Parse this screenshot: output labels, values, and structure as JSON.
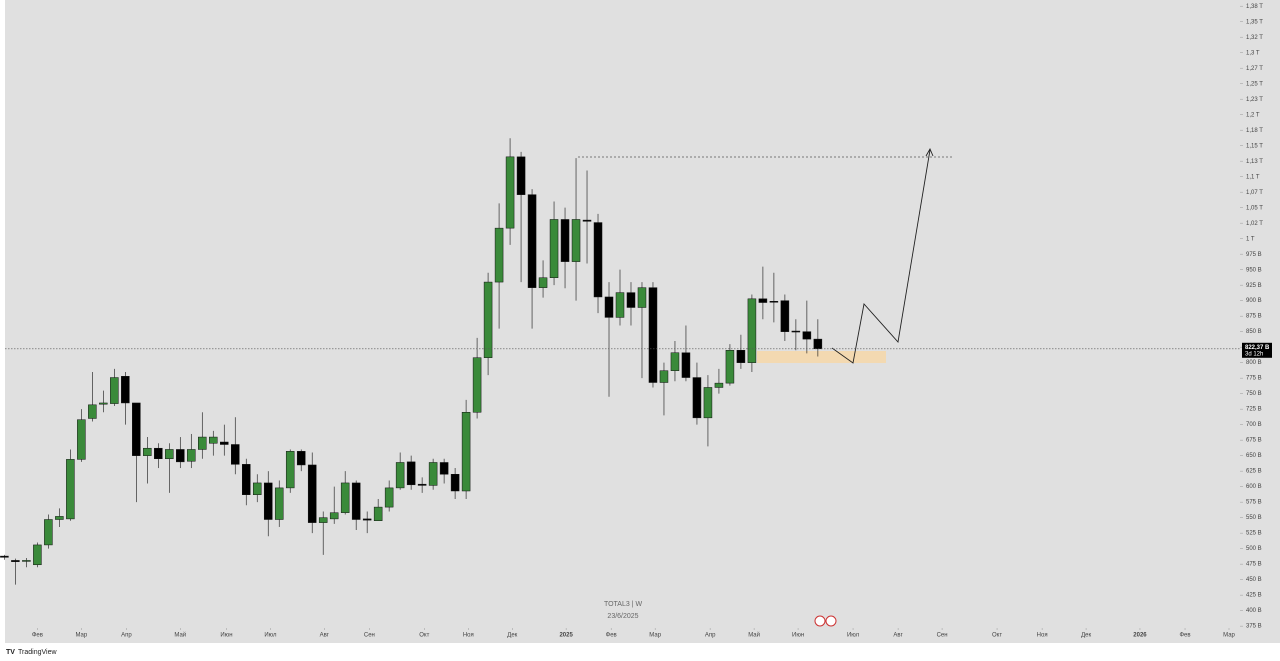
{
  "chart_data": {
    "type": "candlestick",
    "symbol": "TOTAL3 | W",
    "date": "23/6/2025",
    "brand": "TradingView",
    "open": [
      488,
      481,
      480,
      474,
      506,
      547,
      548,
      644,
      710,
      733,
      734,
      778,
      735,
      650,
      662,
      645,
      660,
      641,
      660,
      670,
      672,
      668,
      636,
      587,
      606,
      547,
      598,
      657,
      635,
      542,
      548,
      558,
      606,
      548,
      545,
      567,
      598,
      640,
      604,
      602,
      639,
      620,
      593,
      720,
      808,
      930,
      1017,
      1132,
      1071,
      921,
      937,
      1031,
      963,
      1030,
      1026,
      906,
      873,
      913,
      889,
      921,
      768,
      787,
      816,
      776,
      711,
      760,
      767,
      820,
      800,
      903,
      899,
      900,
      851,
      850,
      838
    ],
    "high": [
      490,
      484,
      485,
      510,
      555,
      565,
      660,
      725,
      785,
      755,
      790,
      785,
      735,
      680,
      670,
      670,
      680,
      685,
      720,
      690,
      700,
      712,
      645,
      620,
      625,
      610,
      660,
      660,
      655,
      560,
      600,
      625,
      610,
      560,
      580,
      610,
      655,
      650,
      615,
      645,
      645,
      630,
      740,
      840,
      945,
      1057,
      1162,
      1140,
      1080,
      965,
      1060,
      1050,
      1130,
      1110,
      1040,
      930,
      950,
      930,
      930,
      930,
      800,
      835,
      860,
      800,
      780,
      790,
      830,
      845,
      910,
      955,
      945,
      910,
      870,
      900,
      870
    ],
    "low": [
      482,
      442,
      470,
      470,
      500,
      535,
      545,
      640,
      705,
      720,
      730,
      700,
      575,
      605,
      630,
      590,
      630,
      630,
      645,
      650,
      650,
      620,
      570,
      575,
      520,
      535,
      590,
      625,
      525,
      490,
      540,
      555,
      530,
      525,
      545,
      560,
      595,
      595,
      590,
      595,
      605,
      580,
      580,
      710,
      780,
      855,
      990,
      930,
      855,
      905,
      925,
      920,
      900,
      960,
      880,
      745,
      860,
      860,
      775,
      760,
      715,
      770,
      770,
      700,
      665,
      750,
      763,
      790,
      785,
      870,
      865,
      835,
      820,
      815,
      810
    ],
    "close": [
      486,
      479,
      481,
      506,
      547,
      552,
      644,
      708,
      732,
      735,
      776,
      735,
      650,
      662,
      645,
      660,
      640,
      660,
      680,
      680,
      668,
      636,
      587,
      606,
      547,
      598,
      657,
      635,
      542,
      550,
      558,
      606,
      547,
      546,
      567,
      598,
      639,
      603,
      602,
      639,
      620,
      593,
      720,
      808,
      930,
      1017,
      1132,
      1071,
      921,
      937,
      1031,
      963,
      1031,
      1028,
      906,
      873,
      913,
      889,
      921,
      768,
      787,
      816,
      776,
      711,
      760,
      767,
      820,
      800,
      903,
      897,
      898,
      850,
      850,
      838,
      822.37
    ],
    "colors": {
      "up": "#3a8a3a",
      "down": "#000000",
      "background": "#e0e0e0"
    },
    "last_price": {
      "value": 822.37,
      "label": "822,37 B"
    },
    "countdown": "3d 12h",
    "xlim": [
      -0.4,
      112.4
    ],
    "xticks": [
      {
        "value": 3,
        "label": "Фев"
      },
      {
        "value": 7,
        "label": "Мар"
      },
      {
        "value": 11.1,
        "label": "Апр"
      },
      {
        "value": 16,
        "label": "Май"
      },
      {
        "value": 20.2,
        "label": "Июн"
      },
      {
        "value": 24.2,
        "label": "Июл"
      },
      {
        "value": 29.1,
        "label": "Авг"
      },
      {
        "value": 33.2,
        "label": "Сен"
      },
      {
        "value": 38.2,
        "label": "Окт"
      },
      {
        "value": 42.2,
        "label": "Ноя"
      },
      {
        "value": 46.2,
        "label": "Дек"
      },
      {
        "value": 51.1,
        "label": "2025"
      },
      {
        "value": 55.2,
        "label": "Фев"
      },
      {
        "value": 59.2,
        "label": "Мар"
      },
      {
        "value": 64.2,
        "label": "Апр"
      },
      {
        "value": 68.2,
        "label": "Май"
      },
      {
        "value": 72.2,
        "label": "Июн"
      },
      {
        "value": 77.2,
        "label": "Июл"
      },
      {
        "value": 81.3,
        "label": "Авг"
      },
      {
        "value": 85.3,
        "label": "Сен"
      },
      {
        "value": 90.3,
        "label": "Окт"
      },
      {
        "value": 94.4,
        "label": "Ноя"
      },
      {
        "value": 98.4,
        "label": "Дек"
      },
      {
        "value": 103.3,
        "label": "2026"
      },
      {
        "value": 107.4,
        "label": "Фев"
      },
      {
        "value": 111.4,
        "label": "Мар"
      }
    ],
    "ylim": [
      372,
      1385
    ],
    "yticks": [
      {
        "value": 1375,
        "label": "1,38 T"
      },
      {
        "value": 1350,
        "label": "1,35 T"
      },
      {
        "value": 1325,
        "label": "1,32 T"
      },
      {
        "value": 1300,
        "label": "1,3 T"
      },
      {
        "value": 1275,
        "label": "1,27 T"
      },
      {
        "value": 1250,
        "label": "1,25 T"
      },
      {
        "value": 1225,
        "label": "1,23 T"
      },
      {
        "value": 1200,
        "label": "1,2 T"
      },
      {
        "value": 1175,
        "label": "1,18 T"
      },
      {
        "value": 1150,
        "label": "1,15 T"
      },
      {
        "value": 1125,
        "label": "1,13 T"
      },
      {
        "value": 1100,
        "label": "1,1 T"
      },
      {
        "value": 1075,
        "label": "1,07 T"
      },
      {
        "value": 1050,
        "label": "1,05 T"
      },
      {
        "value": 1025,
        "label": "1,02 T"
      },
      {
        "value": 1000,
        "label": "1 T"
      },
      {
        "value": 975,
        "label": "975 B"
      },
      {
        "value": 950,
        "label": "950 B"
      },
      {
        "value": 925,
        "label": "925 B"
      },
      {
        "value": 900,
        "label": "900 B"
      },
      {
        "value": 875,
        "label": "875 B"
      },
      {
        "value": 850,
        "label": "850 B"
      },
      {
        "value": 825,
        "label": "825 B"
      },
      {
        "value": 800,
        "label": "800 B"
      },
      {
        "value": 775,
        "label": "775 B"
      },
      {
        "value": 750,
        "label": "750 B"
      },
      {
        "value": 725,
        "label": "725 B"
      },
      {
        "value": 700,
        "label": "700 B"
      },
      {
        "value": 675,
        "label": "675 B"
      },
      {
        "value": 650,
        "label": "650 B"
      },
      {
        "value": 625,
        "label": "625 B"
      },
      {
        "value": 600,
        "label": "600 B"
      },
      {
        "value": 575,
        "label": "575 B"
      },
      {
        "value": 550,
        "label": "550 B"
      },
      {
        "value": 525,
        "label": "525 B"
      },
      {
        "value": 500,
        "label": "500 B"
      },
      {
        "value": 475,
        "label": "475 B"
      },
      {
        "value": 450,
        "label": "450 B"
      },
      {
        "value": 425,
        "label": "425 B"
      },
      {
        "value": 400,
        "label": "400 B"
      },
      {
        "value": 375,
        "label": "375 B"
      }
    ]
  }
}
